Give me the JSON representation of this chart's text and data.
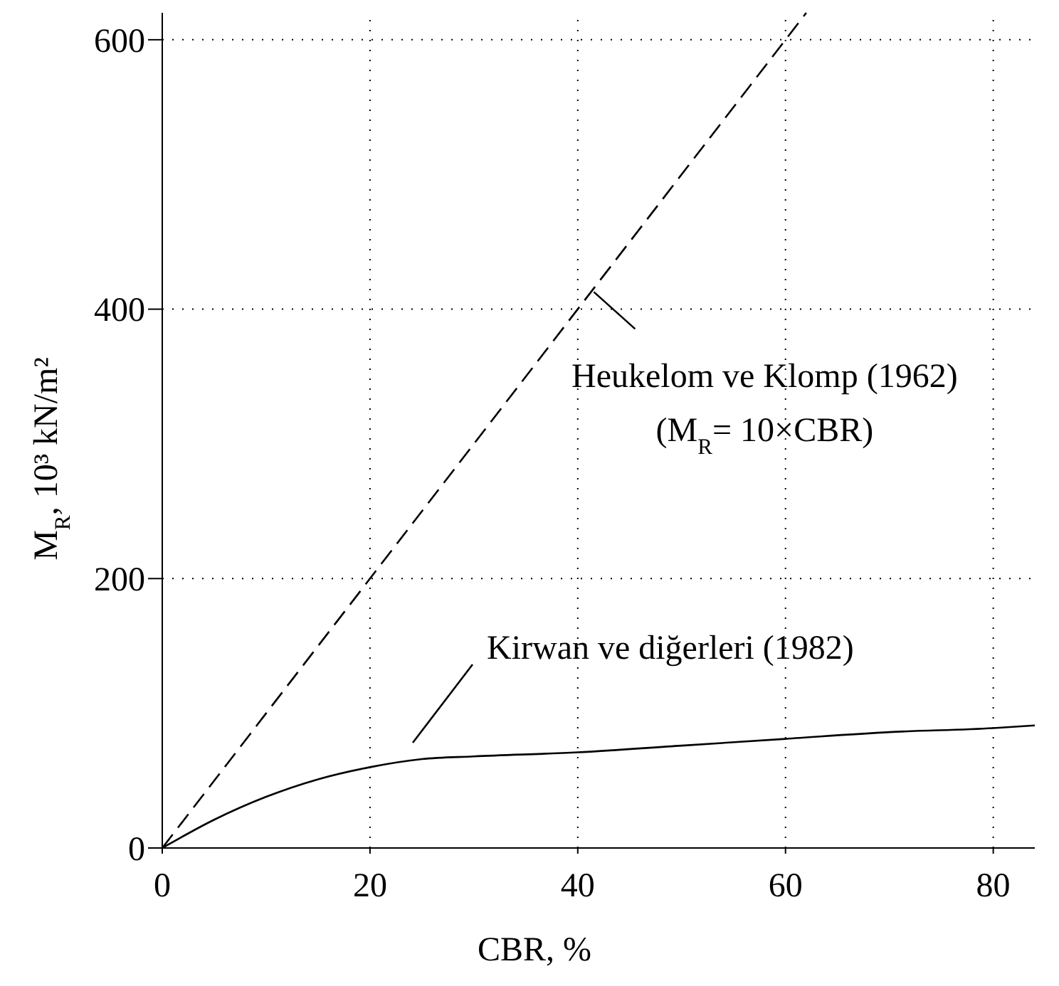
{
  "chart_data": {
    "type": "line",
    "xlabel": "CBR, %",
    "ylabel": "M$_{R}$, 10³ kN/m²",
    "xlim": [
      0,
      84
    ],
    "ylim": [
      0,
      620
    ],
    "xticks": [
      0,
      20,
      40,
      60,
      80
    ],
    "yticks": [
      0,
      200,
      400,
      600
    ],
    "grid": true,
    "series": [
      {
        "color": "#000000",
        "line_style": "dashed",
        "x": [
          0,
          62
        ],
        "values": [
          0,
          620
        ]
      },
      {
        "color": "#000000",
        "line_style": "solid",
        "x": [
          0,
          5,
          10,
          15,
          20,
          25,
          30,
          40,
          50,
          60,
          70,
          80,
          84
        ],
        "values": [
          0,
          21,
          38,
          51,
          60,
          66,
          68,
          71,
          76,
          81,
          86,
          89,
          91
        ]
      }
    ],
    "annotations": [
      {
        "text": "Heukelom ve Klomp (1962)\n(M$_{R}$= 10×CBR)",
        "x": 41,
        "y": 417
      },
      "Kirwan ve diğerleri (1982)"
    ]
  }
}
